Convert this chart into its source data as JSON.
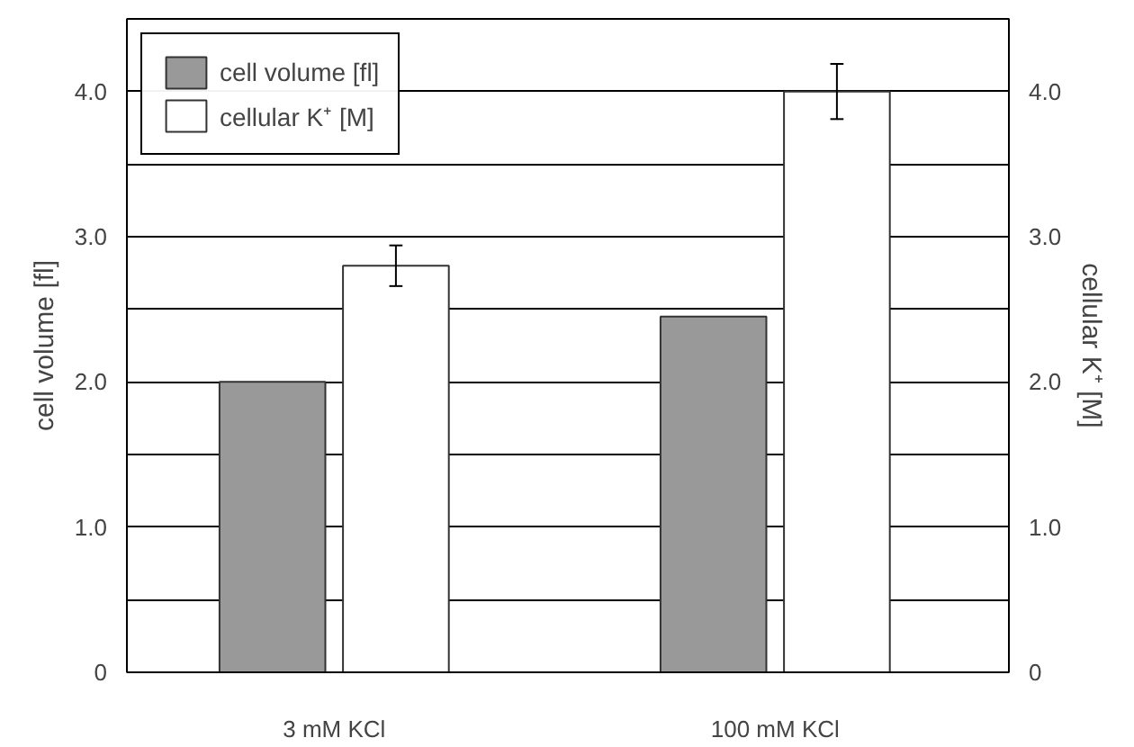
{
  "chart_data": {
    "type": "bar",
    "categories": [
      "3 mM KCl",
      "100 mM KCl"
    ],
    "ylabel": "cell volume [fl]",
    "y2label": "cellular K⁺ [M]",
    "series": [
      {
        "name": "cell volume [fl]",
        "color": "#999999",
        "values": [
          2.0,
          2.45
        ]
      },
      {
        "name": "cellular K⁺ [M]",
        "color": "#ffffff",
        "values": [
          2.8,
          4.0
        ],
        "errors": [
          0.14,
          0.19
        ]
      }
    ],
    "ylim": [
      0,
      4.5
    ],
    "yticks": [
      0,
      {
        "value": 0.5,
        "label": null
      },
      {
        "value": 1,
        "label": "1.0"
      },
      {
        "value": 1.5,
        "label": null
      },
      {
        "value": 2,
        "label": "2.0"
      },
      {
        "value": 2.5,
        "label": null
      },
      {
        "value": 3,
        "label": "3.0"
      },
      {
        "value": 3.5,
        "label": null
      },
      {
        "value": 4,
        "label": "4.0"
      }
    ],
    "y2lim": [
      0,
      4.5
    ],
    "y2ticks": [
      0,
      {
        "value": 0.5,
        "label": null
      },
      {
        "value": 1,
        "label": "1.0"
      },
      {
        "value": 1.5,
        "label": null
      },
      {
        "value": 2,
        "label": "2.0"
      },
      {
        "value": 2.5,
        "label": null
      },
      {
        "value": 3,
        "label": "3.0"
      },
      {
        "value": 3.5,
        "label": null
      },
      {
        "value": 4,
        "label": "4.0"
      }
    ],
    "grid": "y",
    "legend": "top left"
  }
}
